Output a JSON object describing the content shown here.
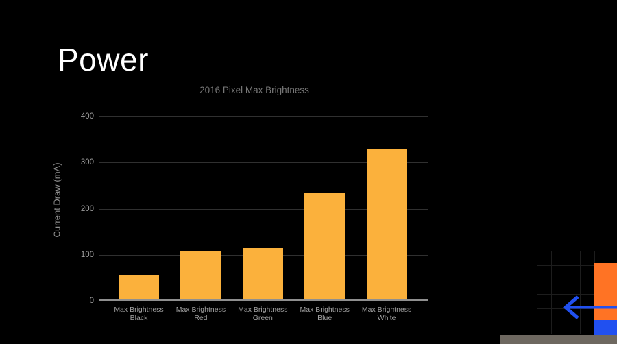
{
  "slide": {
    "title": "Power"
  },
  "chart_data": {
    "type": "bar",
    "title": "2016 Pixel Max Brightness",
    "xlabel": "",
    "ylabel": "Current Draw (mA)",
    "categories": [
      "Max Brightness Black",
      "Max Brightness Red",
      "Max Brightness Green",
      "Max Brightness Blue",
      "Max Brightness White"
    ],
    "values": [
      56,
      107,
      115,
      233,
      330
    ],
    "ylim": [
      0,
      400
    ],
    "yticks": [
      0,
      100,
      200,
      300,
      400
    ],
    "grid": true,
    "legend": false,
    "bar_color": "#fbb13c"
  },
  "colors": {
    "background": "#000000",
    "title_text": "#ffffff",
    "chart_title_text": "#777777",
    "axis_text": "#9e9e9e",
    "bar": "#fbb13c",
    "deco_orange": "#ff7324",
    "deco_blue": "#2150f0",
    "scrubber_gray": "#6e6860"
  },
  "decoration": {
    "arrow_icon": "left-arrow"
  }
}
